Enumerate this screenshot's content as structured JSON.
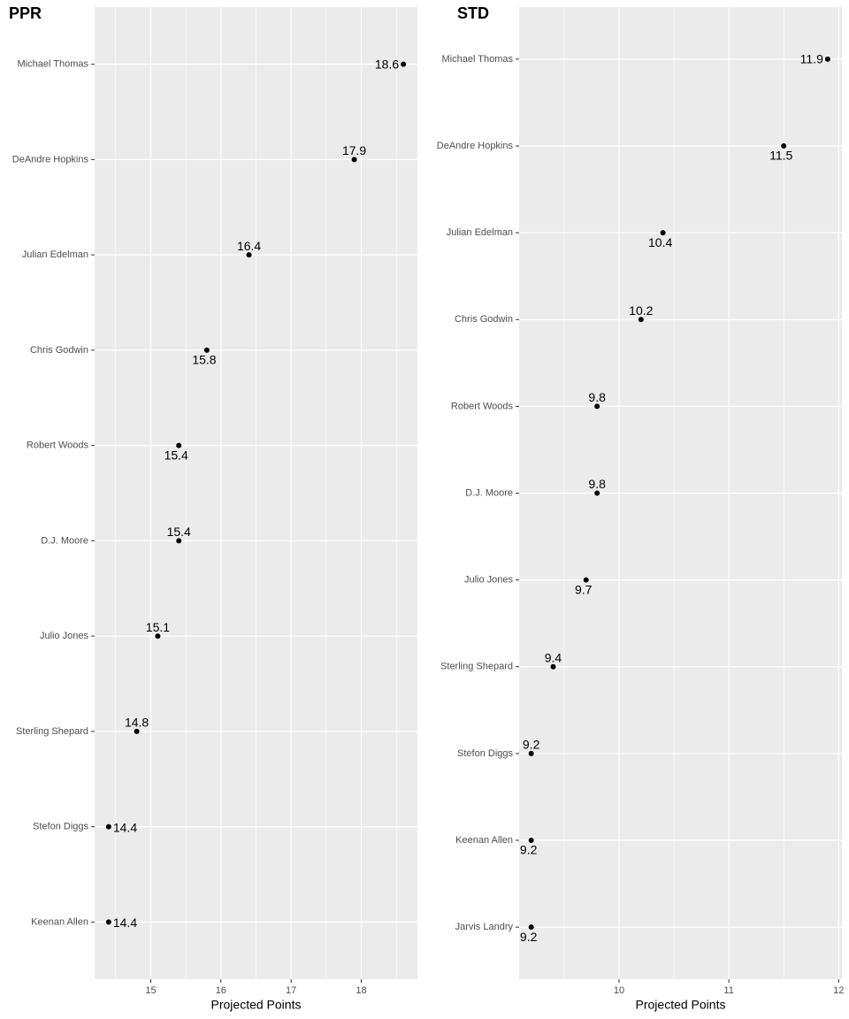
{
  "chart_data": [
    {
      "type": "dot",
      "title": "PPR",
      "x_label": "Projected Points",
      "categories": [
        "Michael Thomas",
        "DeAndre Hopkins",
        "Julian Edelman",
        "Chris Godwin",
        "Robert Woods",
        "D.J. Moore",
        "Julio Jones",
        "Sterling Shepard",
        "Stefon Diggs",
        "Keenan Allen"
      ],
      "values": [
        18.6,
        17.9,
        16.4,
        15.8,
        15.4,
        15.4,
        15.1,
        14.8,
        14.4,
        14.4
      ],
      "xlim": [
        14.2,
        18.8
      ],
      "xticks": [
        15,
        16,
        17,
        18
      ],
      "grid": true,
      "color": "#000000"
    },
    {
      "type": "dot",
      "title": "STD",
      "x_label": "Projected Points",
      "categories": [
        "Michael Thomas",
        "DeAndre Hopkins",
        "Julian Edelman",
        "Chris Godwin",
        "Robert Woods",
        "D.J. Moore",
        "Julio Jones",
        "Sterling Shepard",
        "Stefon Diggs",
        "Keenan Allen",
        "Jarvis Landry"
      ],
      "values": [
        11.9,
        11.5,
        10.4,
        10.2,
        9.8,
        9.8,
        9.7,
        9.4,
        9.2,
        9.2,
        9.2
      ],
      "xlim": [
        9.09,
        12.03
      ],
      "xticks": [
        10,
        11,
        12
      ],
      "grid": true,
      "color": "#000000"
    }
  ]
}
